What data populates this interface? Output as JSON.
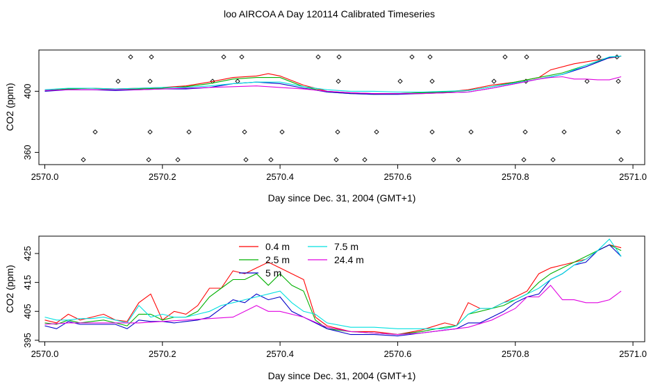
{
  "title": "loo AIRCOA A  Day 120114  Calibrated Timeseries",
  "chart_data": [
    {
      "type": "line",
      "xlabel": "Day since Dec. 31, 2004 (GMT+1)",
      "ylabel": "CO2 (ppm)",
      "xlim": [
        2569.99,
        2571.02
      ],
      "ylim": [
        352,
        427
      ],
      "x_ticks": [
        "2570.0",
        "2570.2",
        "2570.4",
        "2570.6",
        "2570.8",
        "2571.0"
      ],
      "y_ticks": [
        "360",
        "400"
      ],
      "legend": "none",
      "grid": false,
      "series": [
        {
          "color": "#ff0000",
          "x": [
            2570.0,
            2570.04,
            2570.08,
            2570.12,
            2570.16,
            2570.2,
            2570.24,
            2570.28,
            2570.32,
            2570.36,
            2570.38,
            2570.4,
            2570.44,
            2570.48,
            2570.52,
            2570.56,
            2570.6,
            2570.64,
            2570.68,
            2570.72,
            2570.76,
            2570.8,
            2570.84,
            2570.86,
            2570.9,
            2570.94,
            2570.98
          ],
          "y": [
            400.5,
            401.5,
            402,
            401.5,
            402,
            402.5,
            403.5,
            406,
            409,
            410,
            411.5,
            410,
            404,
            400,
            399,
            398.5,
            398.5,
            399,
            399.5,
            401,
            404,
            406,
            409,
            414,
            418,
            420.5,
            423
          ]
        },
        {
          "color": "#00b000",
          "x": [
            2570.0,
            2570.04,
            2570.08,
            2570.12,
            2570.16,
            2570.2,
            2570.24,
            2570.28,
            2570.32,
            2570.36,
            2570.4,
            2570.44,
            2570.48,
            2570.52,
            2570.56,
            2570.6,
            2570.64,
            2570.68,
            2570.72,
            2570.76,
            2570.8,
            2570.84,
            2570.88,
            2570.92,
            2570.96,
            2570.98
          ],
          "y": [
            400.5,
            401.5,
            402,
            401,
            401.5,
            402,
            403,
            405,
            408,
            409,
            409,
            403,
            399.5,
            398.5,
            398,
            398.5,
            399,
            399.5,
            400.5,
            403,
            406,
            409,
            412,
            417,
            422,
            423
          ]
        },
        {
          "color": "#0000c8",
          "x": [
            2570.0,
            2570.04,
            2570.08,
            2570.12,
            2570.16,
            2570.2,
            2570.24,
            2570.28,
            2570.32,
            2570.36,
            2570.4,
            2570.44,
            2570.48,
            2570.52,
            2570.56,
            2570.6,
            2570.64,
            2570.68,
            2570.72,
            2570.76,
            2570.8,
            2570.84,
            2570.88,
            2570.92,
            2570.96,
            2570.98
          ],
          "y": [
            400,
            401,
            401,
            400.5,
            401,
            401.5,
            401.5,
            402.5,
            405,
            406,
            405,
            402,
            399.5,
            398.5,
            398,
            398,
            398.5,
            399,
            399.5,
            402,
            405,
            408,
            411,
            416,
            422,
            423
          ]
        },
        {
          "color": "#00e0e0",
          "x": [
            2570.0,
            2570.04,
            2570.08,
            2570.12,
            2570.16,
            2570.2,
            2570.24,
            2570.28,
            2570.32,
            2570.36,
            2570.4,
            2570.44,
            2570.48,
            2570.52,
            2570.56,
            2570.6,
            2570.64,
            2570.68,
            2570.72,
            2570.76,
            2570.8,
            2570.84,
            2570.88,
            2570.92,
            2570.96,
            2570.98
          ],
          "y": [
            401,
            402,
            402,
            401.5,
            402,
            402.5,
            402.5,
            403.5,
            405,
            406,
            406,
            403,
            401,
            400,
            400,
            399.5,
            399.5,
            400,
            400.5,
            403,
            405.5,
            408,
            411,
            417,
            422.5,
            423
          ]
        },
        {
          "color": "#e000e0",
          "x": [
            2570.0,
            2570.04,
            2570.08,
            2570.12,
            2570.16,
            2570.2,
            2570.24,
            2570.28,
            2570.32,
            2570.36,
            2570.4,
            2570.44,
            2570.48,
            2570.52,
            2570.56,
            2570.6,
            2570.64,
            2570.68,
            2570.72,
            2570.76,
            2570.8,
            2570.84,
            2570.86,
            2570.88,
            2570.9,
            2570.92,
            2570.94,
            2570.96,
            2570.98
          ],
          "y": [
            400.5,
            401,
            401,
            401,
            401,
            401.5,
            402,
            402.5,
            403,
            403.5,
            402.5,
            401.5,
            400,
            399,
            398.5,
            398.5,
            398.5,
            399,
            399.5,
            402,
            405,
            408,
            409,
            409.5,
            408,
            408,
            407.5,
            407.5,
            409.5
          ]
        }
      ]
    },
    {
      "type": "line",
      "xlabel": "Day since Dec. 31, 2004 (GMT+1)",
      "ylabel": "CO2 (ppm)",
      "xlim": [
        2569.99,
        2571.02
      ],
      "ylim": [
        394.5,
        431
      ],
      "x_ticks": [
        "2570.0",
        "2570.2",
        "2570.4",
        "2570.6",
        "2570.8",
        "2571.0"
      ],
      "y_ticks": [
        "395",
        "405",
        "415",
        "425"
      ],
      "legend": "top-center",
      "grid": false,
      "series": [
        {
          "name": "0.4 m",
          "color": "#ff0000",
          "x": [
            2570.0,
            2570.02,
            2570.04,
            2570.06,
            2570.08,
            2570.1,
            2570.12,
            2570.14,
            2570.16,
            2570.18,
            2570.2,
            2570.22,
            2570.24,
            2570.26,
            2570.28,
            2570.3,
            2570.32,
            2570.34,
            2570.36,
            2570.38,
            2570.4,
            2570.42,
            2570.44,
            2570.46,
            2570.48,
            2570.52,
            2570.56,
            2570.6,
            2570.64,
            2570.68,
            2570.7,
            2570.72,
            2570.74,
            2570.76,
            2570.78,
            2570.8,
            2570.82,
            2570.84,
            2570.86,
            2570.88,
            2570.9,
            2570.92,
            2570.94,
            2570.96,
            2570.98
          ],
          "y": [
            402,
            401,
            404,
            402,
            403,
            404,
            402,
            401.5,
            408,
            411,
            402,
            405,
            404,
            407,
            413,
            413,
            419,
            418,
            420,
            422,
            420,
            418,
            416,
            403,
            400,
            398,
            398,
            397,
            398.5,
            401,
            400,
            408,
            406,
            406,
            408,
            410,
            412,
            418,
            420,
            421,
            422,
            423,
            426,
            428,
            427
          ]
        },
        {
          "name": "2.5 m",
          "color": "#00b000",
          "x": [
            2570.0,
            2570.02,
            2570.04,
            2570.06,
            2570.08,
            2570.1,
            2570.12,
            2570.14,
            2570.16,
            2570.18,
            2570.2,
            2570.22,
            2570.24,
            2570.26,
            2570.28,
            2570.3,
            2570.32,
            2570.34,
            2570.36,
            2570.38,
            2570.4,
            2570.42,
            2570.44,
            2570.46,
            2570.48,
            2570.52,
            2570.56,
            2570.6,
            2570.64,
            2570.68,
            2570.7,
            2570.72,
            2570.74,
            2570.76,
            2570.78,
            2570.8,
            2570.82,
            2570.84,
            2570.86,
            2570.88,
            2570.9,
            2570.92,
            2570.94,
            2570.96,
            2570.98
          ],
          "y": [
            401,
            400.5,
            402,
            401,
            401.5,
            402,
            401,
            400,
            404,
            404,
            402,
            403,
            403,
            405,
            410,
            413,
            416,
            416,
            418,
            414,
            418,
            414,
            412,
            402,
            399,
            398,
            397.5,
            397,
            398,
            399.5,
            400,
            404,
            405,
            406,
            407,
            409,
            411,
            415,
            418,
            420,
            422,
            424,
            426,
            428,
            426
          ]
        },
        {
          "name": "5 m",
          "color": "#0000c8",
          "x": [
            2570.0,
            2570.02,
            2570.04,
            2570.06,
            2570.08,
            2570.1,
            2570.12,
            2570.14,
            2570.16,
            2570.18,
            2570.2,
            2570.22,
            2570.24,
            2570.26,
            2570.28,
            2570.3,
            2570.32,
            2570.34,
            2570.36,
            2570.38,
            2570.4,
            2570.42,
            2570.44,
            2570.46,
            2570.48,
            2570.52,
            2570.56,
            2570.6,
            2570.64,
            2570.68,
            2570.7,
            2570.72,
            2570.74,
            2570.76,
            2570.78,
            2570.8,
            2570.82,
            2570.84,
            2570.86,
            2570.88,
            2570.9,
            2570.92,
            2570.94,
            2570.96,
            2570.98
          ],
          "y": [
            400,
            399,
            401.5,
            400.5,
            400.5,
            400.5,
            400.5,
            399,
            402,
            401.5,
            401.5,
            401,
            401.5,
            402,
            403,
            406,
            409,
            408,
            411,
            409,
            410,
            405,
            403,
            401,
            399,
            397,
            397,
            396.5,
            397.5,
            398.5,
            399,
            401,
            401,
            403,
            405,
            408,
            410,
            411,
            416,
            418,
            421,
            422,
            426,
            428,
            424
          ]
        },
        {
          "name": "7.5 m",
          "color": "#00e0e0",
          "x": [
            2570.0,
            2570.02,
            2570.04,
            2570.06,
            2570.08,
            2570.1,
            2570.12,
            2570.14,
            2570.16,
            2570.18,
            2570.2,
            2570.22,
            2570.24,
            2570.26,
            2570.28,
            2570.3,
            2570.32,
            2570.34,
            2570.36,
            2570.38,
            2570.4,
            2570.42,
            2570.44,
            2570.46,
            2570.48,
            2570.52,
            2570.56,
            2570.6,
            2570.64,
            2570.68,
            2570.7,
            2570.72,
            2570.74,
            2570.76,
            2570.78,
            2570.8,
            2570.82,
            2570.84,
            2570.86,
            2570.88,
            2570.9,
            2570.92,
            2570.94,
            2570.96,
            2570.98
          ],
          "y": [
            403,
            402,
            402,
            402.5,
            402.5,
            403,
            402,
            401,
            407,
            403,
            404,
            403,
            403,
            404,
            405,
            407,
            408,
            409,
            410,
            411,
            412,
            408,
            405,
            404,
            401,
            399.5,
            399.5,
            399,
            399,
            399,
            400,
            404,
            406,
            406,
            408,
            409,
            411,
            413,
            416,
            418,
            421,
            423,
            426,
            430,
            424
          ]
        },
        {
          "name": "24.4 m",
          "color": "#e000e0",
          "x": [
            2570.0,
            2570.04,
            2570.08,
            2570.12,
            2570.16,
            2570.2,
            2570.24,
            2570.28,
            2570.32,
            2570.36,
            2570.38,
            2570.4,
            2570.44,
            2570.48,
            2570.52,
            2570.56,
            2570.6,
            2570.64,
            2570.68,
            2570.72,
            2570.76,
            2570.8,
            2570.82,
            2570.84,
            2570.86,
            2570.88,
            2570.9,
            2570.92,
            2570.94,
            2570.96,
            2570.98
          ],
          "y": [
            400.5,
            401,
            401,
            401,
            401,
            401.5,
            402,
            402.5,
            403,
            407,
            405,
            405,
            403,
            399.5,
            398,
            397.5,
            397,
            397.5,
            398.5,
            399.5,
            402,
            406,
            410,
            410,
            414,
            409,
            409,
            408,
            408,
            409,
            412
          ]
        }
      ]
    }
  ]
}
